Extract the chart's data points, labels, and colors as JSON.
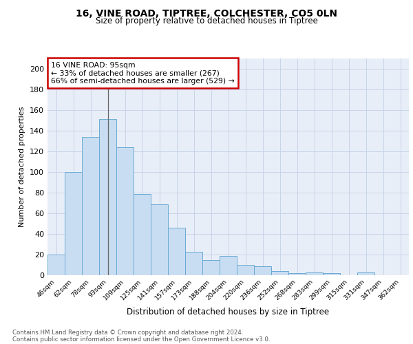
{
  "title1": "16, VINE ROAD, TIPTREE, COLCHESTER, CO5 0LN",
  "title2": "Size of property relative to detached houses in Tiptree",
  "xlabel": "Distribution of detached houses by size in Tiptree",
  "ylabel": "Number of detached properties",
  "categories": [
    "46sqm",
    "62sqm",
    "78sqm",
    "93sqm",
    "109sqm",
    "125sqm",
    "141sqm",
    "157sqm",
    "173sqm",
    "188sqm",
    "204sqm",
    "220sqm",
    "236sqm",
    "252sqm",
    "268sqm",
    "283sqm",
    "299sqm",
    "315sqm",
    "331sqm",
    "347sqm",
    "362sqm"
  ],
  "values": [
    20,
    100,
    134,
    151,
    124,
    79,
    69,
    46,
    23,
    15,
    19,
    10,
    9,
    4,
    2,
    3,
    2,
    0,
    3,
    0,
    0
  ],
  "bar_color": "#c9ddf2",
  "bar_edge_color": "#6aaad4",
  "highlight_index": 3,
  "highlight_line_color": "#666666",
  "annotation_box_text": "16 VINE ROAD: 95sqm\n← 33% of detached houses are smaller (267)\n66% of semi-detached houses are larger (529) →",
  "annotation_box_color": "#cc0000",
  "ylim": [
    0,
    210
  ],
  "yticks": [
    0,
    20,
    40,
    60,
    80,
    100,
    120,
    140,
    160,
    180,
    200
  ],
  "grid_color": "#c8d4e8",
  "bg_color": "#e8eef8",
  "footer1": "Contains HM Land Registry data © Crown copyright and database right 2024.",
  "footer2": "Contains public sector information licensed under the Open Government Licence v3.0."
}
